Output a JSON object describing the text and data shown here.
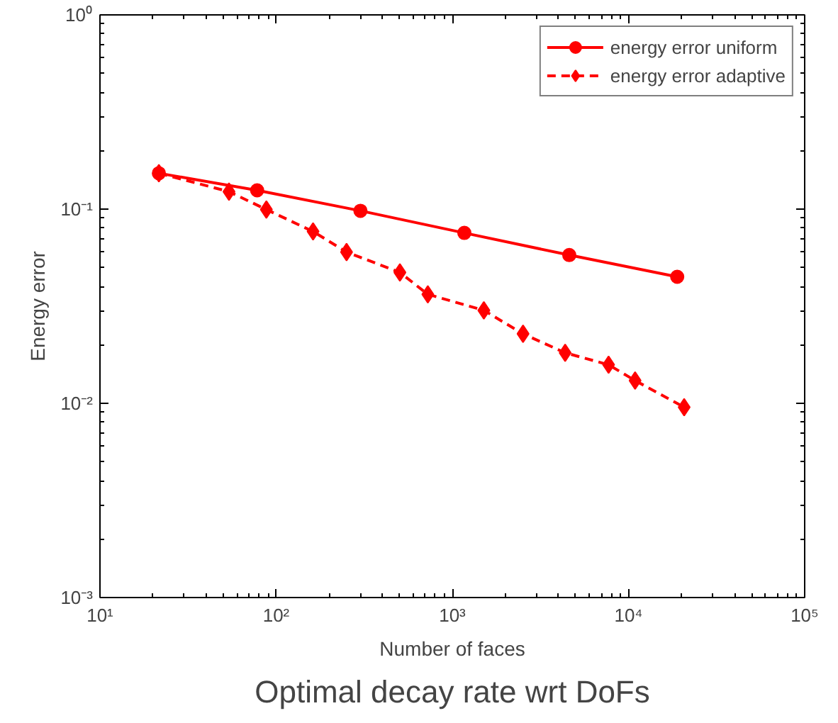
{
  "chart_data": {
    "type": "line",
    "title": "Optimal decay rate wrt DoFs",
    "xlabel": "Number of faces",
    "ylabel": "Energy error",
    "log": "xy",
    "grid": false,
    "legend": "top right",
    "xlim": [
      10,
      100000
    ],
    "ylim": [
      0.001,
      1
    ],
    "xticks": [
      {
        "value": 10,
        "label": "10¹"
      },
      {
        "value": 100,
        "label": "10²"
      },
      {
        "value": 1000,
        "label": "10³"
      },
      {
        "value": 10000,
        "label": "10⁴"
      },
      {
        "value": 100000,
        "label": "10⁵"
      }
    ],
    "yticks": [
      {
        "value": 0.001,
        "label": "10⁻³"
      },
      {
        "value": 0.01,
        "label": "10⁻²"
      },
      {
        "value": 0.1,
        "label": "10⁻¹"
      },
      {
        "value": 1,
        "label": "10⁰"
      }
    ],
    "series": [
      {
        "name": "energy error uniform",
        "color": "#ff0000",
        "marker": "circle",
        "line_style": "solid",
        "x": [
          21.6,
          78,
          301,
          1170,
          4610,
          18900
        ],
        "values": [
          0.153,
          0.125,
          0.098,
          0.0754,
          0.058,
          0.0448
        ]
      },
      {
        "name": "energy error adaptive",
        "color": "#ff0000",
        "marker": "diamond",
        "line_style": "dashed",
        "x": [
          21.6,
          54,
          88,
          162,
          251,
          504,
          726,
          1510,
          2520,
          4370,
          7710,
          10900,
          20700
        ],
        "values": [
          0.153,
          0.123,
          0.0995,
          0.0767,
          0.0601,
          0.0472,
          0.0364,
          0.0301,
          0.0228,
          0.0182,
          0.0158,
          0.0131,
          0.00955
        ]
      }
    ]
  }
}
